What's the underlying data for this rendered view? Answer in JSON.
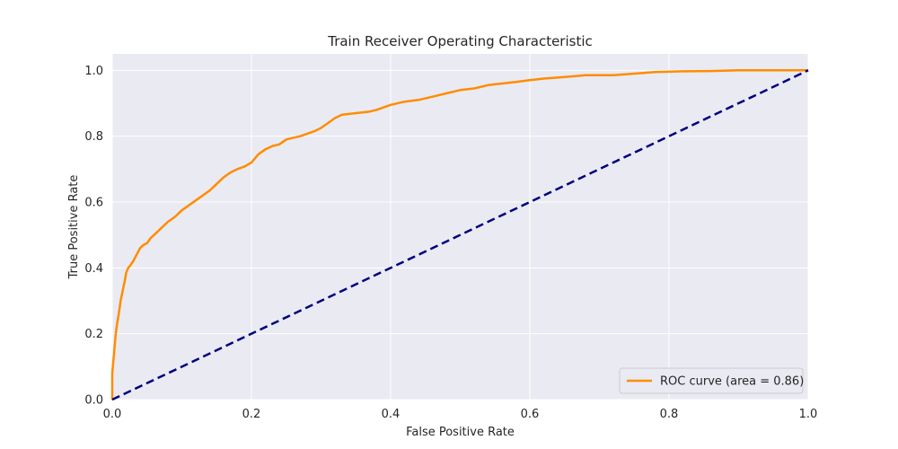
{
  "chart_data": {
    "type": "line",
    "title": "Train Receiver Operating Characteristic",
    "xlabel": "False Positive Rate",
    "ylabel": "True Positive Rate",
    "xlim": [
      0.0,
      1.0
    ],
    "ylim": [
      0.0,
      1.05
    ],
    "xticks": [
      "0.0",
      "0.2",
      "0.4",
      "0.6",
      "0.8",
      "1.0"
    ],
    "yticks": [
      "0.0",
      "0.2",
      "0.4",
      "0.6",
      "0.8",
      "1.0"
    ],
    "grid": true,
    "background_color": "#eaeaf2",
    "legend_position": "lower right",
    "series": [
      {
        "name": "ROC curve (area = 0.86)",
        "color": "#ff8c00",
        "style": "solid",
        "x": [
          0.0,
          0.0,
          0.003,
          0.005,
          0.007,
          0.01,
          0.012,
          0.015,
          0.018,
          0.02,
          0.023,
          0.025,
          0.03,
          0.035,
          0.04,
          0.045,
          0.05,
          0.055,
          0.06,
          0.07,
          0.08,
          0.09,
          0.1,
          0.11,
          0.12,
          0.13,
          0.14,
          0.15,
          0.16,
          0.17,
          0.18,
          0.19,
          0.2,
          0.21,
          0.22,
          0.23,
          0.24,
          0.25,
          0.27,
          0.29,
          0.3,
          0.31,
          0.32,
          0.33,
          0.35,
          0.37,
          0.38,
          0.4,
          0.42,
          0.44,
          0.46,
          0.48,
          0.5,
          0.52,
          0.54,
          0.56,
          0.58,
          0.6,
          0.62,
          0.65,
          0.68,
          0.7,
          0.72,
          0.75,
          0.78,
          0.82,
          0.86,
          0.9,
          0.95,
          1.0
        ],
        "y": [
          0.0,
          0.08,
          0.15,
          0.2,
          0.23,
          0.27,
          0.3,
          0.33,
          0.36,
          0.385,
          0.4,
          0.405,
          0.42,
          0.44,
          0.46,
          0.47,
          0.475,
          0.49,
          0.5,
          0.52,
          0.54,
          0.555,
          0.575,
          0.59,
          0.605,
          0.62,
          0.635,
          0.655,
          0.675,
          0.69,
          0.7,
          0.708,
          0.72,
          0.745,
          0.76,
          0.77,
          0.775,
          0.79,
          0.8,
          0.815,
          0.825,
          0.84,
          0.855,
          0.865,
          0.87,
          0.875,
          0.88,
          0.895,
          0.905,
          0.91,
          0.92,
          0.93,
          0.94,
          0.945,
          0.955,
          0.96,
          0.965,
          0.97,
          0.975,
          0.98,
          0.985,
          0.985,
          0.985,
          0.99,
          0.995,
          0.997,
          0.998,
          1.0,
          1.0,
          1.0
        ]
      },
      {
        "name": "",
        "color": "#000080",
        "style": "dashed",
        "x": [
          0.0,
          1.0
        ],
        "y": [
          0.0,
          1.0
        ]
      }
    ]
  }
}
